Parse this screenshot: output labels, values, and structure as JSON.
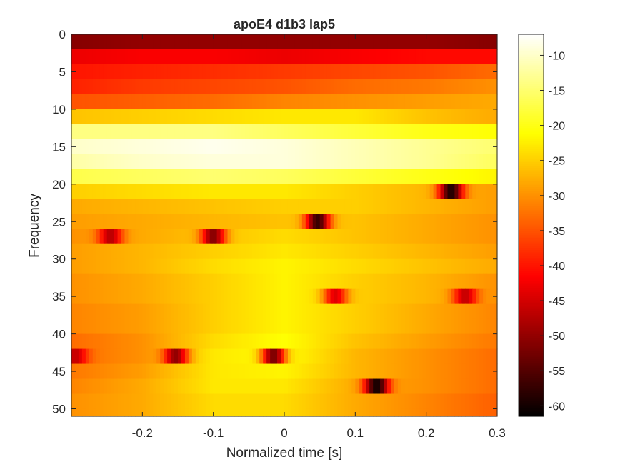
{
  "chart_data": {
    "type": "heatmap",
    "title": "apoE4 d1b3 lap5",
    "xlabel": "Normalized time [s]",
    "ylabel": "Frequency",
    "xlim": [
      -0.3,
      0.3
    ],
    "ylim": [
      0,
      51
    ],
    "y_reversed": true,
    "x_ticks": [
      -0.2,
      -0.1,
      0,
      0.1,
      0.2,
      0.3
    ],
    "x_tick_labels": [
      "-0.2",
      "-0.1",
      "0",
      "0.1",
      "0.2",
      "0.3"
    ],
    "y_ticks": [
      0,
      5,
      10,
      15,
      20,
      25,
      30,
      35,
      40,
      45,
      50
    ],
    "y_tick_labels": [
      "0",
      "5",
      "10",
      "15",
      "20",
      "25",
      "30",
      "35",
      "40",
      "45",
      "50"
    ],
    "colormap": "hot",
    "clim": [
      -61.5,
      -7
    ],
    "colorbar_ticks": [
      -10,
      -15,
      -20,
      -25,
      -30,
      -35,
      -40,
      -45,
      -50,
      -55,
      -60
    ],
    "colorbar_tick_labels": [
      "-10",
      "-15",
      "-20",
      "-25",
      "-30",
      "-35",
      "-40",
      "-45",
      "-50",
      "-55",
      "-60"
    ],
    "frequency_rows": [
      1,
      3,
      5,
      7,
      9,
      11,
      13,
      15,
      17,
      19,
      21,
      23,
      25,
      27,
      29,
      31,
      33,
      35,
      37,
      39,
      41,
      43,
      45,
      47,
      49,
      51
    ],
    "time_breakpoints": [
      -0.3,
      -0.2,
      -0.1,
      0,
      0.1,
      0.2,
      0.3
    ],
    "row_profiles": [
      [
        -51,
        -50,
        -50,
        -50,
        -50,
        -50,
        -51
      ],
      [
        -43,
        -42,
        -42,
        -43,
        -42,
        -41,
        -41
      ],
      [
        -40,
        -39,
        -38,
        -37,
        -36,
        -35,
        -33
      ],
      [
        -39,
        -37,
        -36,
        -35,
        -33,
        -32,
        -30
      ],
      [
        -35,
        -34,
        -33,
        -31,
        -30,
        -29,
        -28
      ],
      [
        -26,
        -25,
        -24,
        -23,
        -23,
        -26,
        -28
      ],
      [
        -14,
        -14,
        -14,
        -16,
        -18,
        -20,
        -21
      ],
      [
        -10,
        -9,
        -8,
        -9,
        -11,
        -13,
        -15
      ],
      [
        -12,
        -10,
        -9,
        -9,
        -11,
        -13,
        -16
      ],
      [
        -17,
        -16,
        -15,
        -16,
        -18,
        -20,
        -22
      ],
      [
        -25,
        -24,
        -23,
        -23,
        -25,
        -27,
        -29
      ],
      [
        -28,
        -27,
        -26,
        -25,
        -25,
        -27,
        -29
      ],
      [
        -29,
        -28,
        -27,
        -26,
        -26,
        -28,
        -30
      ],
      [
        -30,
        -28,
        -26,
        -24,
        -26,
        -28,
        -30
      ],
      [
        -29,
        -27,
        -25,
        -23,
        -25,
        -27,
        -29
      ],
      [
        -29,
        -27,
        -24,
        -22,
        -24,
        -26,
        -28
      ],
      [
        -30,
        -28,
        -25,
        -22,
        -25,
        -27,
        -30
      ],
      [
        -30,
        -28,
        -25,
        -22,
        -25,
        -27,
        -30
      ],
      [
        -31,
        -29,
        -25,
        -22,
        -25,
        -28,
        -31
      ],
      [
        -31,
        -29,
        -25,
        -22,
        -25,
        -28,
        -31
      ],
      [
        -33,
        -30,
        -24,
        -21,
        -26,
        -29,
        -32
      ],
      [
        -33,
        -30,
        -23,
        -21,
        -27,
        -30,
        -33
      ],
      [
        -32,
        -29,
        -23,
        -22,
        -27,
        -30,
        -33
      ],
      [
        -31,
        -28,
        -23,
        -23,
        -28,
        -30,
        -33
      ],
      [
        -30,
        -28,
        -24,
        -24,
        -28,
        -31,
        -34
      ],
      [
        -30,
        -28,
        -24,
        -24,
        -28,
        -31,
        -34
      ]
    ],
    "blobs": [
      {
        "freq": 21,
        "time": 0.235,
        "value": -59
      },
      {
        "freq": 25,
        "time": 0.047,
        "value": -57
      },
      {
        "freq": 27,
        "time": -0.245,
        "value": -47
      },
      {
        "freq": 27,
        "time": -0.1,
        "value": -51
      },
      {
        "freq": 35,
        "time": 0.072,
        "value": -44
      },
      {
        "freq": 35,
        "time": 0.255,
        "value": -46
      },
      {
        "freq": 43,
        "time": -0.295,
        "value": -46
      },
      {
        "freq": 43,
        "time": -0.153,
        "value": -50
      },
      {
        "freq": 43,
        "time": -0.015,
        "value": -52
      },
      {
        "freq": 47,
        "time": 0.13,
        "value": -60
      }
    ]
  }
}
